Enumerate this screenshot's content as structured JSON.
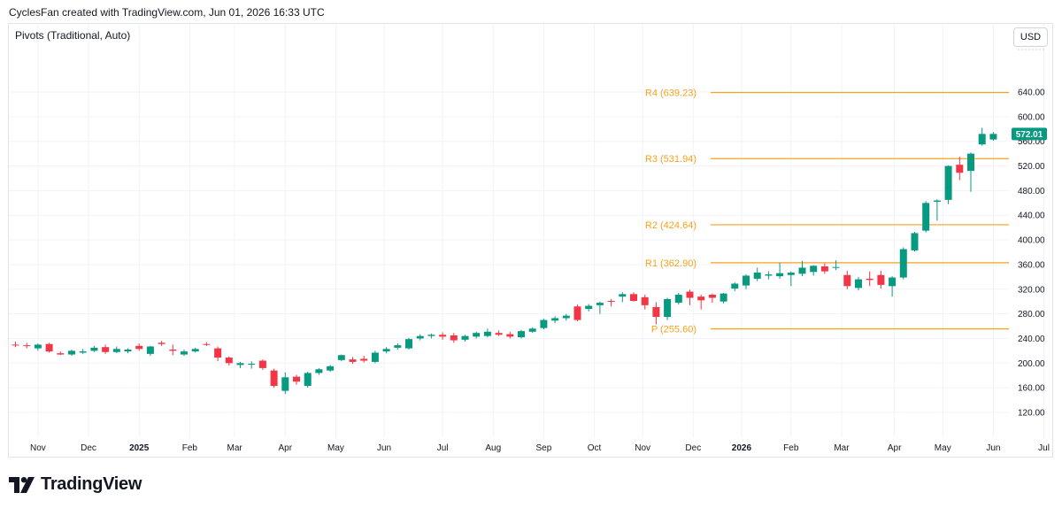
{
  "credit": "CyclesFan created with TradingView.com, Jun 01, 2026 16:33 UTC",
  "indicator_label": "Pivots (Traditional, Auto)",
  "currency_button": "USD",
  "brand": "TradingView",
  "colors": {
    "up": "#26a69a",
    "up_body": "#089981",
    "down": "#f23645",
    "pivot": "#f7a21b",
    "grid": "#f0f3fa",
    "price_tag_bg": "#089981"
  },
  "chart_data": {
    "type": "candlestick",
    "interval": "weekly",
    "y_axis": {
      "ticks": [
        120,
        160,
        200,
        240,
        280,
        320,
        360,
        400,
        440,
        480,
        520,
        560,
        600,
        640
      ],
      "tick_labels": [
        "120.00",
        "160.00",
        "200.00",
        "240.00",
        "280.00",
        "320.00",
        "360.00",
        "400.00",
        "440.00",
        "480.00",
        "520.00",
        "560.00",
        "600.00",
        "640.00"
      ],
      "range": [
        90,
        690
      ]
    },
    "x_axis": {
      "labels": [
        "Nov",
        "Dec",
        "2025",
        "Feb",
        "Mar",
        "Apr",
        "May",
        "Jun",
        "Jul",
        "Aug",
        "Sep",
        "Oct",
        "Nov",
        "Dec",
        "2026",
        "Feb",
        "Mar",
        "Apr",
        "May",
        "Jun",
        "Jul"
      ],
      "bold": [
        "2025",
        "2026"
      ],
      "label_bar_index": [
        2,
        6.5,
        11,
        15.5,
        19.5,
        24,
        28.5,
        32.8,
        38,
        42.5,
        47,
        51.5,
        55.8,
        60.3,
        64.6,
        69,
        73.5,
        78.2,
        82.5,
        87,
        91.5
      ]
    },
    "current_price": "572.01",
    "current_price_value": 572.01,
    "pivots": [
      {
        "label": "R4 (639.23)",
        "value": 639.23
      },
      {
        "label": "R3 (531.94)",
        "value": 531.94
      },
      {
        "label": "R2 (424.64)",
        "value": 424.64
      },
      {
        "label": "R1 (362.90)",
        "value": 362.9
      },
      {
        "label": "P (255.60)",
        "value": 255.6
      }
    ],
    "candles": [
      {
        "o": 230,
        "h": 235,
        "l": 226,
        "c": 229
      },
      {
        "o": 229,
        "h": 233,
        "l": 224,
        "c": 228
      },
      {
        "o": 224,
        "h": 232,
        "l": 220,
        "c": 230
      },
      {
        "o": 231,
        "h": 233,
        "l": 217,
        "c": 219
      },
      {
        "o": 216,
        "h": 219,
        "l": 213,
        "c": 214
      },
      {
        "o": 214,
        "h": 222,
        "l": 212,
        "c": 220
      },
      {
        "o": 217,
        "h": 223,
        "l": 215,
        "c": 219
      },
      {
        "o": 220,
        "h": 228,
        "l": 218,
        "c": 225
      },
      {
        "o": 226,
        "h": 230,
        "l": 215,
        "c": 218
      },
      {
        "o": 218,
        "h": 227,
        "l": 216,
        "c": 223
      },
      {
        "o": 219,
        "h": 224,
        "l": 216,
        "c": 222
      },
      {
        "o": 228,
        "h": 232,
        "l": 220,
        "c": 223
      },
      {
        "o": 215,
        "h": 228,
        "l": 212,
        "c": 227
      },
      {
        "o": 233,
        "h": 236,
        "l": 228,
        "c": 231
      },
      {
        "o": 222,
        "h": 230,
        "l": 213,
        "c": 220
      },
      {
        "o": 214,
        "h": 222,
        "l": 212,
        "c": 219
      },
      {
        "o": 219,
        "h": 225,
        "l": 217,
        "c": 223
      },
      {
        "o": 231,
        "h": 234,
        "l": 228,
        "c": 230
      },
      {
        "o": 224,
        "h": 227,
        "l": 203,
        "c": 209
      },
      {
        "o": 209,
        "h": 211,
        "l": 196,
        "c": 200
      },
      {
        "o": 197,
        "h": 202,
        "l": 192,
        "c": 200
      },
      {
        "o": 199,
        "h": 203,
        "l": 191,
        "c": 199
      },
      {
        "o": 204,
        "h": 206,
        "l": 189,
        "c": 192
      },
      {
        "o": 188,
        "h": 191,
        "l": 160,
        "c": 163
      },
      {
        "o": 155,
        "h": 185,
        "l": 150,
        "c": 177
      },
      {
        "o": 178,
        "h": 181,
        "l": 165,
        "c": 170
      },
      {
        "o": 163,
        "h": 186,
        "l": 160,
        "c": 184
      },
      {
        "o": 184,
        "h": 192,
        "l": 181,
        "c": 190
      },
      {
        "o": 188,
        "h": 197,
        "l": 186,
        "c": 195
      },
      {
        "o": 205,
        "h": 214,
        "l": 203,
        "c": 213
      },
      {
        "o": 206,
        "h": 210,
        "l": 199,
        "c": 202
      },
      {
        "o": 207,
        "h": 212,
        "l": 201,
        "c": 204
      },
      {
        "o": 202,
        "h": 220,
        "l": 200,
        "c": 217
      },
      {
        "o": 219,
        "h": 226,
        "l": 216,
        "c": 223
      },
      {
        "o": 225,
        "h": 232,
        "l": 222,
        "c": 229
      },
      {
        "o": 224,
        "h": 241,
        "l": 222,
        "c": 239
      },
      {
        "o": 240,
        "h": 247,
        "l": 237,
        "c": 244
      },
      {
        "o": 244,
        "h": 248,
        "l": 240,
        "c": 246
      },
      {
        "o": 246,
        "h": 250,
        "l": 238,
        "c": 243
      },
      {
        "o": 245,
        "h": 249,
        "l": 233,
        "c": 237
      },
      {
        "o": 238,
        "h": 246,
        "l": 235,
        "c": 244
      },
      {
        "o": 243,
        "h": 251,
        "l": 240,
        "c": 249
      },
      {
        "o": 244,
        "h": 256,
        "l": 242,
        "c": 251
      },
      {
        "o": 249,
        "h": 253,
        "l": 244,
        "c": 246
      },
      {
        "o": 247,
        "h": 251,
        "l": 240,
        "c": 243
      },
      {
        "o": 242,
        "h": 254,
        "l": 240,
        "c": 252
      },
      {
        "o": 251,
        "h": 258,
        "l": 249,
        "c": 256
      },
      {
        "o": 257,
        "h": 272,
        "l": 255,
        "c": 270
      },
      {
        "o": 269,
        "h": 276,
        "l": 265,
        "c": 273
      },
      {
        "o": 273,
        "h": 280,
        "l": 269,
        "c": 277
      },
      {
        "o": 292,
        "h": 295,
        "l": 268,
        "c": 270
      },
      {
        "o": 288,
        "h": 296,
        "l": 284,
        "c": 293
      },
      {
        "o": 294,
        "h": 300,
        "l": 280,
        "c": 298
      },
      {
        "o": 301,
        "h": 304,
        "l": 292,
        "c": 300
      },
      {
        "o": 308,
        "h": 315,
        "l": 299,
        "c": 312
      },
      {
        "o": 312,
        "h": 315,
        "l": 300,
        "c": 301
      },
      {
        "o": 307,
        "h": 311,
        "l": 287,
        "c": 294
      },
      {
        "o": 291,
        "h": 299,
        "l": 263,
        "c": 275
      },
      {
        "o": 275,
        "h": 306,
        "l": 270,
        "c": 304
      },
      {
        "o": 298,
        "h": 314,
        "l": 295,
        "c": 311
      },
      {
        "o": 316,
        "h": 319,
        "l": 294,
        "c": 306
      },
      {
        "o": 308,
        "h": 311,
        "l": 287,
        "c": 302
      },
      {
        "o": 311,
        "h": 313,
        "l": 298,
        "c": 306
      },
      {
        "o": 300,
        "h": 314,
        "l": 297,
        "c": 313
      },
      {
        "o": 321,
        "h": 331,
        "l": 317,
        "c": 329
      },
      {
        "o": 326,
        "h": 344,
        "l": 320,
        "c": 342
      },
      {
        "o": 337,
        "h": 355,
        "l": 333,
        "c": 347
      },
      {
        "o": 342,
        "h": 349,
        "l": 336,
        "c": 344
      },
      {
        "o": 341,
        "h": 363,
        "l": 337,
        "c": 346
      },
      {
        "o": 343,
        "h": 349,
        "l": 325,
        "c": 347
      },
      {
        "o": 345,
        "h": 366,
        "l": 341,
        "c": 355
      },
      {
        "o": 348,
        "h": 359,
        "l": 342,
        "c": 358
      },
      {
        "o": 357,
        "h": 362,
        "l": 345,
        "c": 349
      },
      {
        "o": 355,
        "h": 367,
        "l": 351,
        "c": 356
      },
      {
        "o": 343,
        "h": 350,
        "l": 320,
        "c": 325
      },
      {
        "o": 322,
        "h": 340,
        "l": 318,
        "c": 336
      },
      {
        "o": 337,
        "h": 349,
        "l": 325,
        "c": 335
      },
      {
        "o": 343,
        "h": 350,
        "l": 321,
        "c": 327
      },
      {
        "o": 325,
        "h": 341,
        "l": 308,
        "c": 339
      },
      {
        "o": 339,
        "h": 388,
        "l": 336,
        "c": 385
      },
      {
        "o": 383,
        "h": 413,
        "l": 381,
        "c": 411
      },
      {
        "o": 415,
        "h": 463,
        "l": 412,
        "c": 460
      },
      {
        "o": 462,
        "h": 466,
        "l": 431,
        "c": 464
      },
      {
        "o": 465,
        "h": 521,
        "l": 458,
        "c": 520
      },
      {
        "o": 522,
        "h": 535,
        "l": 497,
        "c": 509
      },
      {
        "o": 512,
        "h": 542,
        "l": 478,
        "c": 540
      },
      {
        "o": 555,
        "h": 582,
        "l": 553,
        "c": 572
      },
      {
        "o": 563,
        "h": 575,
        "l": 561,
        "c": 572.01
      }
    ]
  }
}
